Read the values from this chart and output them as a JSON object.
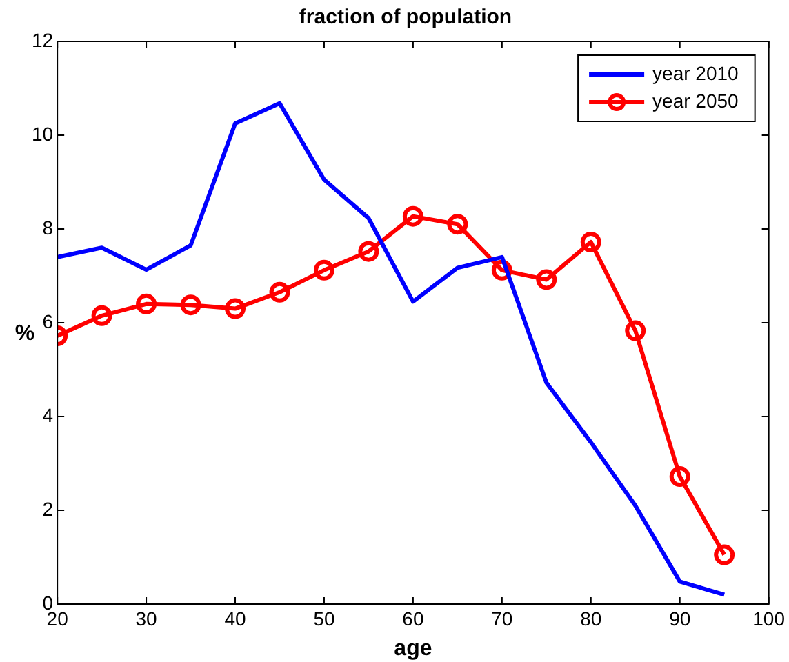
{
  "chart_data": {
    "type": "line",
    "title": "fraction of population",
    "xlabel": "age",
    "ylabel": "%",
    "x": [
      20,
      25,
      30,
      35,
      40,
      45,
      50,
      55,
      60,
      65,
      70,
      75,
      80,
      85,
      90,
      95
    ],
    "series": [
      {
        "name": "year 2010",
        "color": "#0000ff",
        "marker": "none",
        "values": [
          7.4,
          7.6,
          7.13,
          7.65,
          10.25,
          10.68,
          9.05,
          8.23,
          6.45,
          7.17,
          7.4,
          4.72,
          3.45,
          2.1,
          0.48,
          0.2
        ]
      },
      {
        "name": "year 2050",
        "color": "#ff0000",
        "marker": "circle",
        "values": [
          5.72,
          6.15,
          6.4,
          6.38,
          6.3,
          6.65,
          7.12,
          7.52,
          8.27,
          8.1,
          7.12,
          6.92,
          7.72,
          5.83,
          2.72,
          1.05
        ]
      }
    ],
    "xlim": [
      20,
      100
    ],
    "xticks": [
      20,
      30,
      40,
      50,
      60,
      70,
      80,
      90,
      100
    ],
    "ylim": [
      0,
      12
    ],
    "yticks": [
      0,
      2,
      4,
      6,
      8,
      10,
      12
    ],
    "grid": false,
    "legend": "top right",
    "line_style": "solid"
  }
}
